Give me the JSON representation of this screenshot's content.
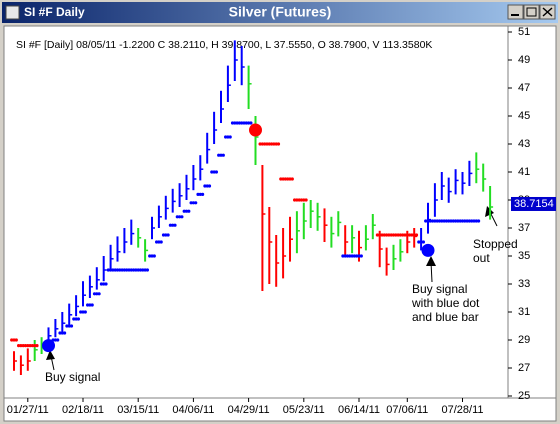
{
  "window_title": "SI #F Daily",
  "chart_data": {
    "type": "ohlc",
    "title": "Silver (Futures)",
    "info": "SI #F [Daily] 08/05/11  -1.2200 C 38.2110, H 39.8700, L 37.5550, O 38.7900, V 113.3580K",
    "categories": [
      null,
      null,
      "01/27/11",
      null,
      null,
      null,
      null,
      null,
      null,
      null,
      "02/18/11",
      null,
      null,
      null,
      null,
      null,
      null,
      null,
      "03/15/11",
      null,
      null,
      null,
      null,
      null,
      null,
      null,
      "04/06/11",
      null,
      null,
      null,
      null,
      null,
      null,
      null,
      "04/29/11",
      null,
      null,
      null,
      null,
      null,
      null,
      null,
      "05/23/11",
      null,
      null,
      null,
      null,
      null,
      null,
      null,
      "06/14/11",
      null,
      null,
      null,
      null,
      null,
      null,
      "07/06/11",
      null,
      null,
      null,
      null,
      null,
      null,
      null,
      "07/28/11",
      null,
      null,
      null,
      null
    ],
    "high": [
      28.2,
      27.9,
      28.4,
      29.0,
      29.2,
      29.9,
      30.5,
      31.0,
      31.6,
      32.2,
      33.2,
      33.6,
      34.2,
      35.0,
      35.8,
      36.4,
      37.0,
      37.6,
      37.0,
      36.2,
      37.8,
      38.6,
      39.3,
      39.8,
      40.2,
      40.8,
      41.5,
      42.2,
      43.8,
      45.3,
      46.8,
      48.6,
      50.4,
      50.0,
      48.6,
      45.0,
      41.5,
      38.5,
      36.5,
      37.0,
      37.8,
      38.2,
      38.8,
      39.0,
      38.8,
      38.4,
      37.8,
      38.2,
      37.2,
      37.2,
      36.8,
      37.2,
      38.0,
      36.8,
      35.6,
      35.8,
      36.2,
      36.8,
      37.0,
      37.0,
      38.8,
      40.2,
      41.0,
      40.6,
      41.2,
      41.0,
      41.8,
      42.4,
      41.6,
      40.0
    ],
    "low": [
      26.8,
      26.5,
      26.8,
      27.5,
      28.0,
      28.6,
      29.2,
      29.6,
      30.1,
      30.7,
      31.4,
      32.0,
      32.6,
      33.2,
      34.0,
      34.6,
      35.2,
      35.8,
      35.6,
      34.6,
      36.2,
      37.0,
      37.6,
      38.1,
      38.5,
      39.0,
      39.7,
      40.4,
      41.6,
      43.0,
      44.5,
      46.0,
      47.5,
      47.2,
      45.5,
      41.5,
      32.5,
      33.0,
      32.8,
      33.4,
      34.6,
      35.2,
      36.2,
      37.0,
      36.8,
      36.0,
      35.6,
      36.4,
      35.0,
      35.2,
      34.6,
      35.4,
      36.2,
      34.2,
      33.6,
      34.0,
      34.6,
      35.2,
      35.6,
      35.4,
      36.6,
      37.8,
      39.0,
      38.8,
      39.4,
      39.4,
      40.0,
      40.2,
      39.6,
      37.6
    ],
    "close": [
      27.5,
      27.2,
      27.5,
      28.3,
      28.6,
      29.3,
      29.8,
      30.2,
      30.8,
      31.4,
      32.2,
      32.8,
      33.3,
      34.0,
      34.8,
      35.3,
      36.0,
      36.6,
      36.3,
      35.4,
      37.0,
      37.8,
      38.4,
      38.9,
      39.3,
      39.8,
      40.5,
      41.2,
      42.6,
      44.0,
      45.5,
      47.2,
      49.0,
      48.5,
      47.3,
      43.5,
      38.0,
      36.0,
      34.5,
      35.0,
      36.2,
      36.8,
      37.5,
      38.2,
      37.8,
      37.2,
      36.6,
      37.4,
      36.0,
      36.3,
      35.6,
      36.2,
      37.2,
      35.5,
      34.4,
      34.8,
      35.3,
      36.0,
      36.4,
      36.0,
      37.6,
      39.0,
      40.0,
      39.6,
      40.4,
      40.2,
      40.9,
      41.2,
      40.5,
      38.5
    ],
    "bar_colors": [
      "#ff0000",
      "#ff0000",
      "#ff0000",
      "#22dd22",
      "#22dd22",
      "#0000ff",
      "#0000ff",
      "#0000ff",
      "#0000ff",
      "#0000ff",
      "#0000ff",
      "#0000ff",
      "#0000ff",
      "#0000ff",
      "#0000ff",
      "#0000ff",
      "#0000ff",
      "#0000ff",
      "#22dd22",
      "#22dd22",
      "#0000ff",
      "#0000ff",
      "#0000ff",
      "#0000ff",
      "#0000ff",
      "#0000ff",
      "#0000ff",
      "#0000ff",
      "#0000ff",
      "#0000ff",
      "#0000ff",
      "#0000ff",
      "#0000ff",
      "#0000ff",
      "#22dd22",
      "#22dd22",
      "#ff0000",
      "#ff0000",
      "#ff0000",
      "#ff0000",
      "#ff0000",
      "#22dd22",
      "#22dd22",
      "#22dd22",
      "#22dd22",
      "#ff0000",
      "#22dd22",
      "#22dd22",
      "#ff0000",
      "#22dd22",
      "#ff0000",
      "#22dd22",
      "#22dd22",
      "#ff0000",
      "#ff0000",
      "#22dd22",
      "#22dd22",
      "#ff0000",
      "#ff0000",
      "#0000ff",
      "#0000ff",
      "#0000ff",
      "#0000ff",
      "#0000ff",
      "#0000ff",
      "#0000ff",
      "#0000ff",
      "#22dd22",
      "#22dd22",
      "#22dd22"
    ],
    "stops": [
      29.0,
      28.6,
      28.6,
      28.6,
      null,
      28.6,
      29.0,
      29.5,
      30.0,
      30.5,
      31.0,
      31.5,
      32.3,
      33.0,
      34.0,
      34.0,
      34.0,
      34.0,
      34.0,
      34.0,
      35.0,
      36.0,
      36.5,
      37.2,
      37.8,
      38.2,
      38.8,
      39.4,
      40.0,
      41.0,
      42.2,
      43.5,
      44.5,
      44.5,
      44.5,
      null,
      43.0,
      43.0,
      43.0,
      40.5,
      40.5,
      39.0,
      39.0,
      null,
      null,
      null,
      null,
      null,
      35.0,
      35.0,
      35.0,
      null,
      null,
      36.5,
      36.5,
      36.5,
      36.5,
      36.5,
      36.5,
      36.0,
      37.5,
      37.5,
      37.5,
      37.5,
      37.5,
      37.5,
      37.5,
      37.5,
      null,
      null
    ],
    "stop_colors": [
      "#ff0000",
      "#ff0000",
      "#ff0000",
      "#ff0000",
      null,
      "#0000ff",
      "#0000ff",
      "#0000ff",
      "#0000ff",
      "#0000ff",
      "#0000ff",
      "#0000ff",
      "#0000ff",
      "#0000ff",
      "#0000ff",
      "#0000ff",
      "#0000ff",
      "#0000ff",
      "#0000ff",
      "#0000ff",
      "#0000ff",
      "#0000ff",
      "#0000ff",
      "#0000ff",
      "#0000ff",
      "#0000ff",
      "#0000ff",
      "#0000ff",
      "#0000ff",
      "#0000ff",
      "#0000ff",
      "#0000ff",
      "#0000ff",
      "#0000ff",
      "#0000ff",
      null,
      "#ff0000",
      "#ff0000",
      "#ff0000",
      "#ff0000",
      "#ff0000",
      "#ff0000",
      "#ff0000",
      null,
      null,
      null,
      null,
      null,
      "#0000ff",
      "#0000ff",
      "#0000ff",
      null,
      null,
      "#ff0000",
      "#ff0000",
      "#ff0000",
      "#ff0000",
      "#ff0000",
      "#ff0000",
      "#0000ff",
      "#0000ff",
      "#0000ff",
      "#0000ff",
      "#0000ff",
      "#0000ff",
      "#0000ff",
      "#0000ff",
      "#0000ff",
      null,
      null
    ],
    "signals": [
      {
        "bar": 5,
        "value": 28.6,
        "color": "#0000ff"
      },
      {
        "bar": 35,
        "value": 44.0,
        "color": "#ff0000"
      },
      {
        "bar": 60,
        "value": 35.4,
        "color": "#0000ff"
      }
    ],
    "last_value": 38.7154,
    "ylim": [
      25,
      51
    ],
    "yticks": [
      25,
      27,
      29,
      31,
      33,
      35,
      37,
      39,
      41,
      43,
      45,
      47,
      49,
      51
    ],
    "annotations": [
      [
        "Buy signal"
      ],
      [
        "Buy signal",
        "with blue dot",
        "and blue bar"
      ],
      [
        "Stopped",
        "out"
      ]
    ]
  }
}
